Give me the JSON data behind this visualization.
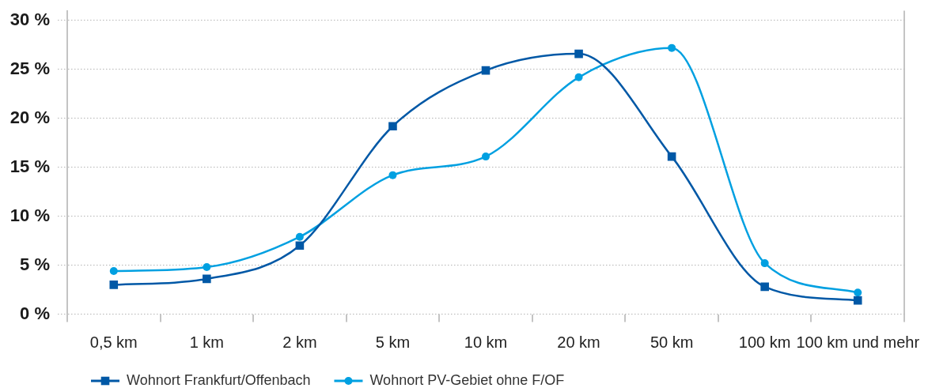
{
  "chart_data": {
    "type": "line",
    "categories": [
      "0,5 km",
      "1 km",
      "2 km",
      "5 km",
      "10 km",
      "20 km",
      "50 km",
      "100 km",
      "100 km und mehr"
    ],
    "series": [
      {
        "name": "Wohnort Frankfurt/Offenbach",
        "color": "#0058a6",
        "marker": "square",
        "values": [
          3.0,
          3.6,
          7.0,
          19.2,
          24.9,
          26.6,
          16.1,
          2.8,
          1.4
        ]
      },
      {
        "name": "Wohnort PV-Gebiet ohne F/OF",
        "color": "#00a0e1",
        "marker": "circle",
        "values": [
          4.4,
          4.8,
          7.9,
          14.2,
          16.1,
          24.2,
          27.2,
          5.2,
          2.2
        ]
      }
    ],
    "ylim": [
      0,
      31
    ],
    "yticks": [
      {
        "value": 0,
        "label": "0 %"
      },
      {
        "value": 5,
        "label": "5 %"
      },
      {
        "value": 10,
        "label": "10 %"
      },
      {
        "value": 15,
        "label": "15 %"
      },
      {
        "value": 20,
        "label": "20 %"
      },
      {
        "value": 25,
        "label": "25 %"
      },
      {
        "value": 30,
        "label": "30 %"
      }
    ],
    "grid": "y",
    "legend": "bottom left"
  }
}
